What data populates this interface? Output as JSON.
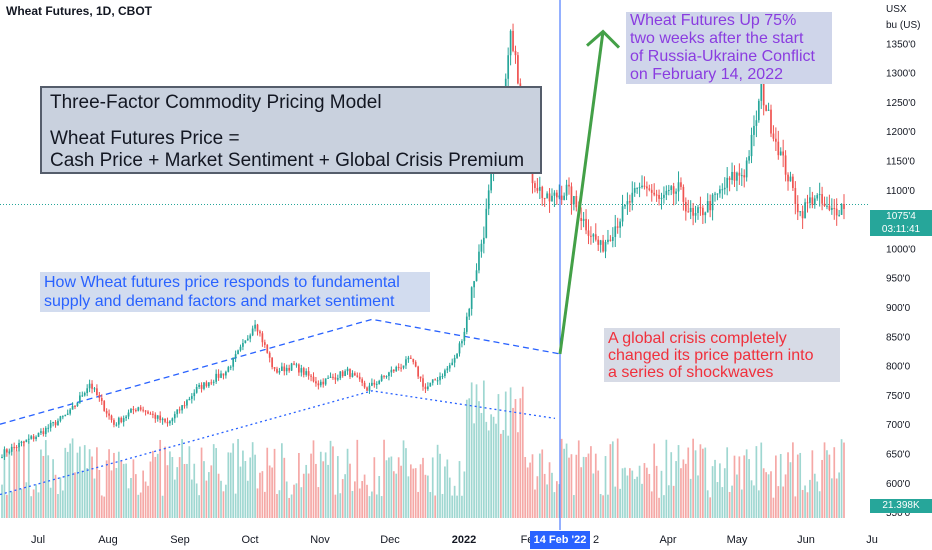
{
  "header": {
    "symbol": "Wheat Futures, 1D, CBOT"
  },
  "axis_unit": {
    "currency": "USX",
    "unit": "bu (US)"
  },
  "annotations": {
    "model_title": "Three-Factor Commodity Pricing Model",
    "model_eq_1": "Wheat Futures Price =",
    "model_eq_2": "Cash Price + Market Sentiment + Global Crisis Premium",
    "blue_1": "How Wheat futures price responds to fundamental",
    "blue_2": "supply and demand factors and market sentiment",
    "purple_1": "Wheat Futures Up 75%",
    "purple_2": "two weeks after the start",
    "purple_3": "of Russia-Ukraine Conflict",
    "purple_4": "on February 14, 2022",
    "red_1": "A global crisis completely",
    "red_2": "changed its price pattern into",
    "red_3": "a series of shockwaves"
  },
  "last_price": {
    "price": "1075'4",
    "countdown": "03:11:41"
  },
  "last_volume": {
    "value": "21.398K"
  },
  "crosshair_date": "14 Feb '22",
  "colors": {
    "up": "#26a69a",
    "down": "#ef5350",
    "vol_up": "#9fd7d1",
    "vol_down": "#f5a8a6",
    "trend": "#2962ff",
    "arrow": "#43a047",
    "crosshair": "#2962ff"
  },
  "chart_data": {
    "type": "candlestick",
    "ylim": [
      540,
      1400
    ],
    "y_ticks": [
      "1350'0",
      "1300'0",
      "1250'0",
      "1200'0",
      "1150'0",
      "1100'0",
      "1000'0",
      "950'0",
      "900'0",
      "850'0",
      "800'0",
      "750'0",
      "700'0",
      "650'0",
      "600'0",
      "550'0"
    ],
    "x_labels": [
      "Jul",
      "Aug",
      "Sep",
      "Oct",
      "Nov",
      "Dec",
      "2022",
      "Fe",
      "2",
      "Apr",
      "May",
      "Jun",
      "Ju"
    ],
    "anchors": [
      [
        0,
        650
      ],
      [
        14,
        680
      ],
      [
        28,
        720
      ],
      [
        36,
        770
      ],
      [
        46,
        700
      ],
      [
        56,
        730
      ],
      [
        68,
        700
      ],
      [
        80,
        760
      ],
      [
        92,
        790
      ],
      [
        100,
        840
      ],
      [
        104,
        875
      ],
      [
        112,
        790
      ],
      [
        120,
        800
      ],
      [
        130,
        770
      ],
      [
        142,
        790
      ],
      [
        150,
        760
      ],
      [
        160,
        790
      ],
      [
        168,
        810
      ],
      [
        174,
        760
      ],
      [
        182,
        790
      ],
      [
        186,
        810
      ],
      [
        190,
        860
      ],
      [
        194,
        950
      ],
      [
        198,
        1030
      ],
      [
        202,
        1150
      ],
      [
        206,
        1250
      ],
      [
        209,
        1360
      ],
      [
        211,
        1340
      ],
      [
        214,
        1200
      ],
      [
        218,
        1120
      ],
      [
        224,
        1080
      ],
      [
        232,
        1100
      ],
      [
        240,
        1040
      ],
      [
        246,
        1000
      ],
      [
        252,
        1040
      ],
      [
        258,
        1080
      ],
      [
        264,
        1110
      ],
      [
        270,
        1080
      ],
      [
        278,
        1100
      ],
      [
        284,
        1050
      ],
      [
        292,
        1080
      ],
      [
        300,
        1120
      ],
      [
        305,
        1130
      ],
      [
        309,
        1200
      ],
      [
        312,
        1270
      ],
      [
        316,
        1210
      ],
      [
        320,
        1160
      ],
      [
        324,
        1110
      ],
      [
        328,
        1060
      ],
      [
        334,
        1090
      ],
      [
        340,
        1060
      ],
      [
        346,
        1075
      ]
    ],
    "trend_upper": [
      [
        0,
        700
      ],
      [
        372,
        879
      ],
      [
        560,
        820
      ]
    ],
    "trend_lower": [
      [
        0,
        580
      ],
      [
        372,
        757
      ],
      [
        555,
        710
      ]
    ],
    "arrow": [
      [
        560,
        820
      ],
      [
        603,
        1370
      ]
    ],
    "crosshair_x_date": "14 Feb '22"
  }
}
